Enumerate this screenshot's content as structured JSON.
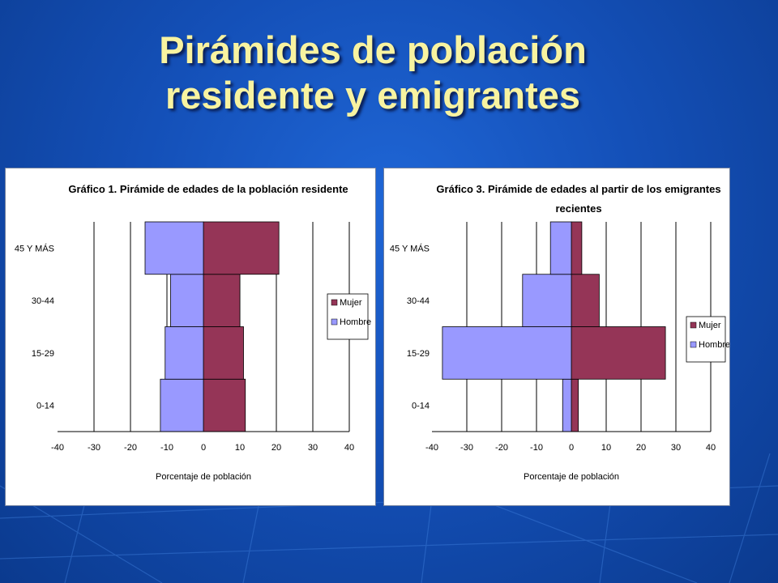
{
  "slide": {
    "title_line1": "Pirámides de población",
    "title_line2": "residente y emigrantes"
  },
  "colors": {
    "mujer": "#953557",
    "hombre": "#9999ff",
    "background": "#1450b8",
    "title": "#f8f3a0"
  },
  "chart_data": [
    {
      "type": "bar",
      "orientation": "horizontal",
      "title_lines": [
        "Gráfico 1. Pirámide de edades de la población residente"
      ],
      "xlabel": "Porcentaje de población",
      "ylabel": "",
      "xlim": [
        -40,
        40
      ],
      "xticks": [
        "-40",
        "-30",
        "-20",
        "-10",
        "0",
        "10",
        "20",
        "30",
        "40"
      ],
      "grid": "vertical",
      "legend": "right",
      "categories": [
        "0-14",
        "15-29",
        "30-44",
        "45 Y MÁS"
      ],
      "series": [
        {
          "name": "Mujer",
          "values": [
            11.5,
            11,
            10,
            20.7
          ]
        },
        {
          "name": "Hombre",
          "values": [
            -11.8,
            -10.5,
            -9,
            -16
          ]
        }
      ]
    },
    {
      "type": "bar",
      "orientation": "horizontal",
      "title_lines": [
        "Gráfico 3. Pirámide de edades al partir de los emigrantes",
        "recientes"
      ],
      "xlabel": "Porcentaje de población",
      "ylabel": "",
      "xlim": [
        -40,
        40
      ],
      "xticks": [
        "-40",
        "-30",
        "-20",
        "-10",
        "0",
        "10",
        "20",
        "30",
        "40"
      ],
      "grid": "vertical",
      "legend": "right",
      "categories": [
        "0-14",
        "15-29",
        "30-44",
        "45 Y MÁS"
      ],
      "series": [
        {
          "name": "Mujer",
          "values": [
            2,
            27,
            8,
            3
          ]
        },
        {
          "name": "Hombre",
          "values": [
            -2.5,
            -37,
            -14,
            -6
          ]
        }
      ]
    }
  ]
}
